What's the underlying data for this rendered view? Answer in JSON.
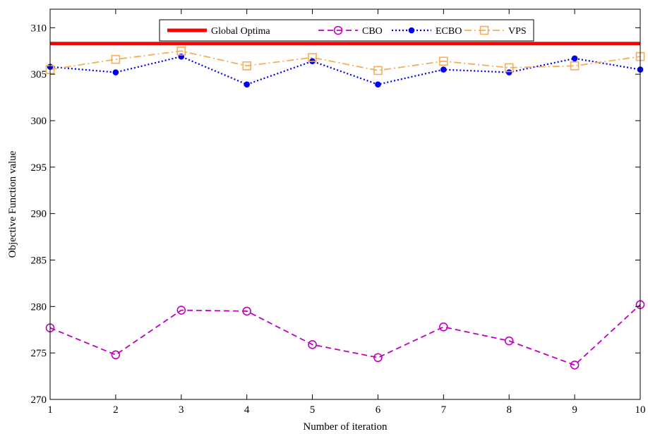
{
  "chart_data": {
    "type": "line",
    "xlabel": "Number of iteration",
    "ylabel": "Objective Function value",
    "xlim": [
      1,
      10
    ],
    "ylim": [
      270,
      312
    ],
    "xticks": [
      "1",
      "2",
      "3",
      "4",
      "5",
      "6",
      "7",
      "8",
      "9",
      "10"
    ],
    "yticks": [
      "270",
      "275",
      "280",
      "285",
      "290",
      "295",
      "300",
      "305",
      "310"
    ],
    "grid": false,
    "legend_position": "top",
    "x": [
      1,
      2,
      3,
      4,
      5,
      6,
      7,
      8,
      9,
      10
    ],
    "series": [
      {
        "name": "Global Optima",
        "color": "#ff0000",
        "style": "solid-thick",
        "marker": "none",
        "values": [
          308.3,
          308.3,
          308.3,
          308.3,
          308.3,
          308.3,
          308.3,
          308.3,
          308.3,
          308.3
        ]
      },
      {
        "name": "CBO",
        "color": "#c000c0",
        "style": "dashed",
        "marker": "circle-open",
        "values": [
          277.7,
          274.8,
          279.6,
          279.5,
          275.9,
          274.5,
          277.8,
          276.3,
          273.7,
          280.2
        ]
      },
      {
        "name": "ECBO",
        "color": "#0000ee",
        "style": "dotted",
        "marker": "circle-filled",
        "values": [
          305.8,
          305.2,
          306.9,
          303.9,
          306.4,
          303.9,
          305.5,
          305.2,
          306.7,
          305.5
        ]
      },
      {
        "name": "VPS",
        "color": "#f5ad5c",
        "style": "dashdot",
        "marker": "square-open",
        "values": [
          305.5,
          306.6,
          307.5,
          305.9,
          306.8,
          305.4,
          306.4,
          305.7,
          305.9,
          306.9
        ]
      }
    ]
  }
}
